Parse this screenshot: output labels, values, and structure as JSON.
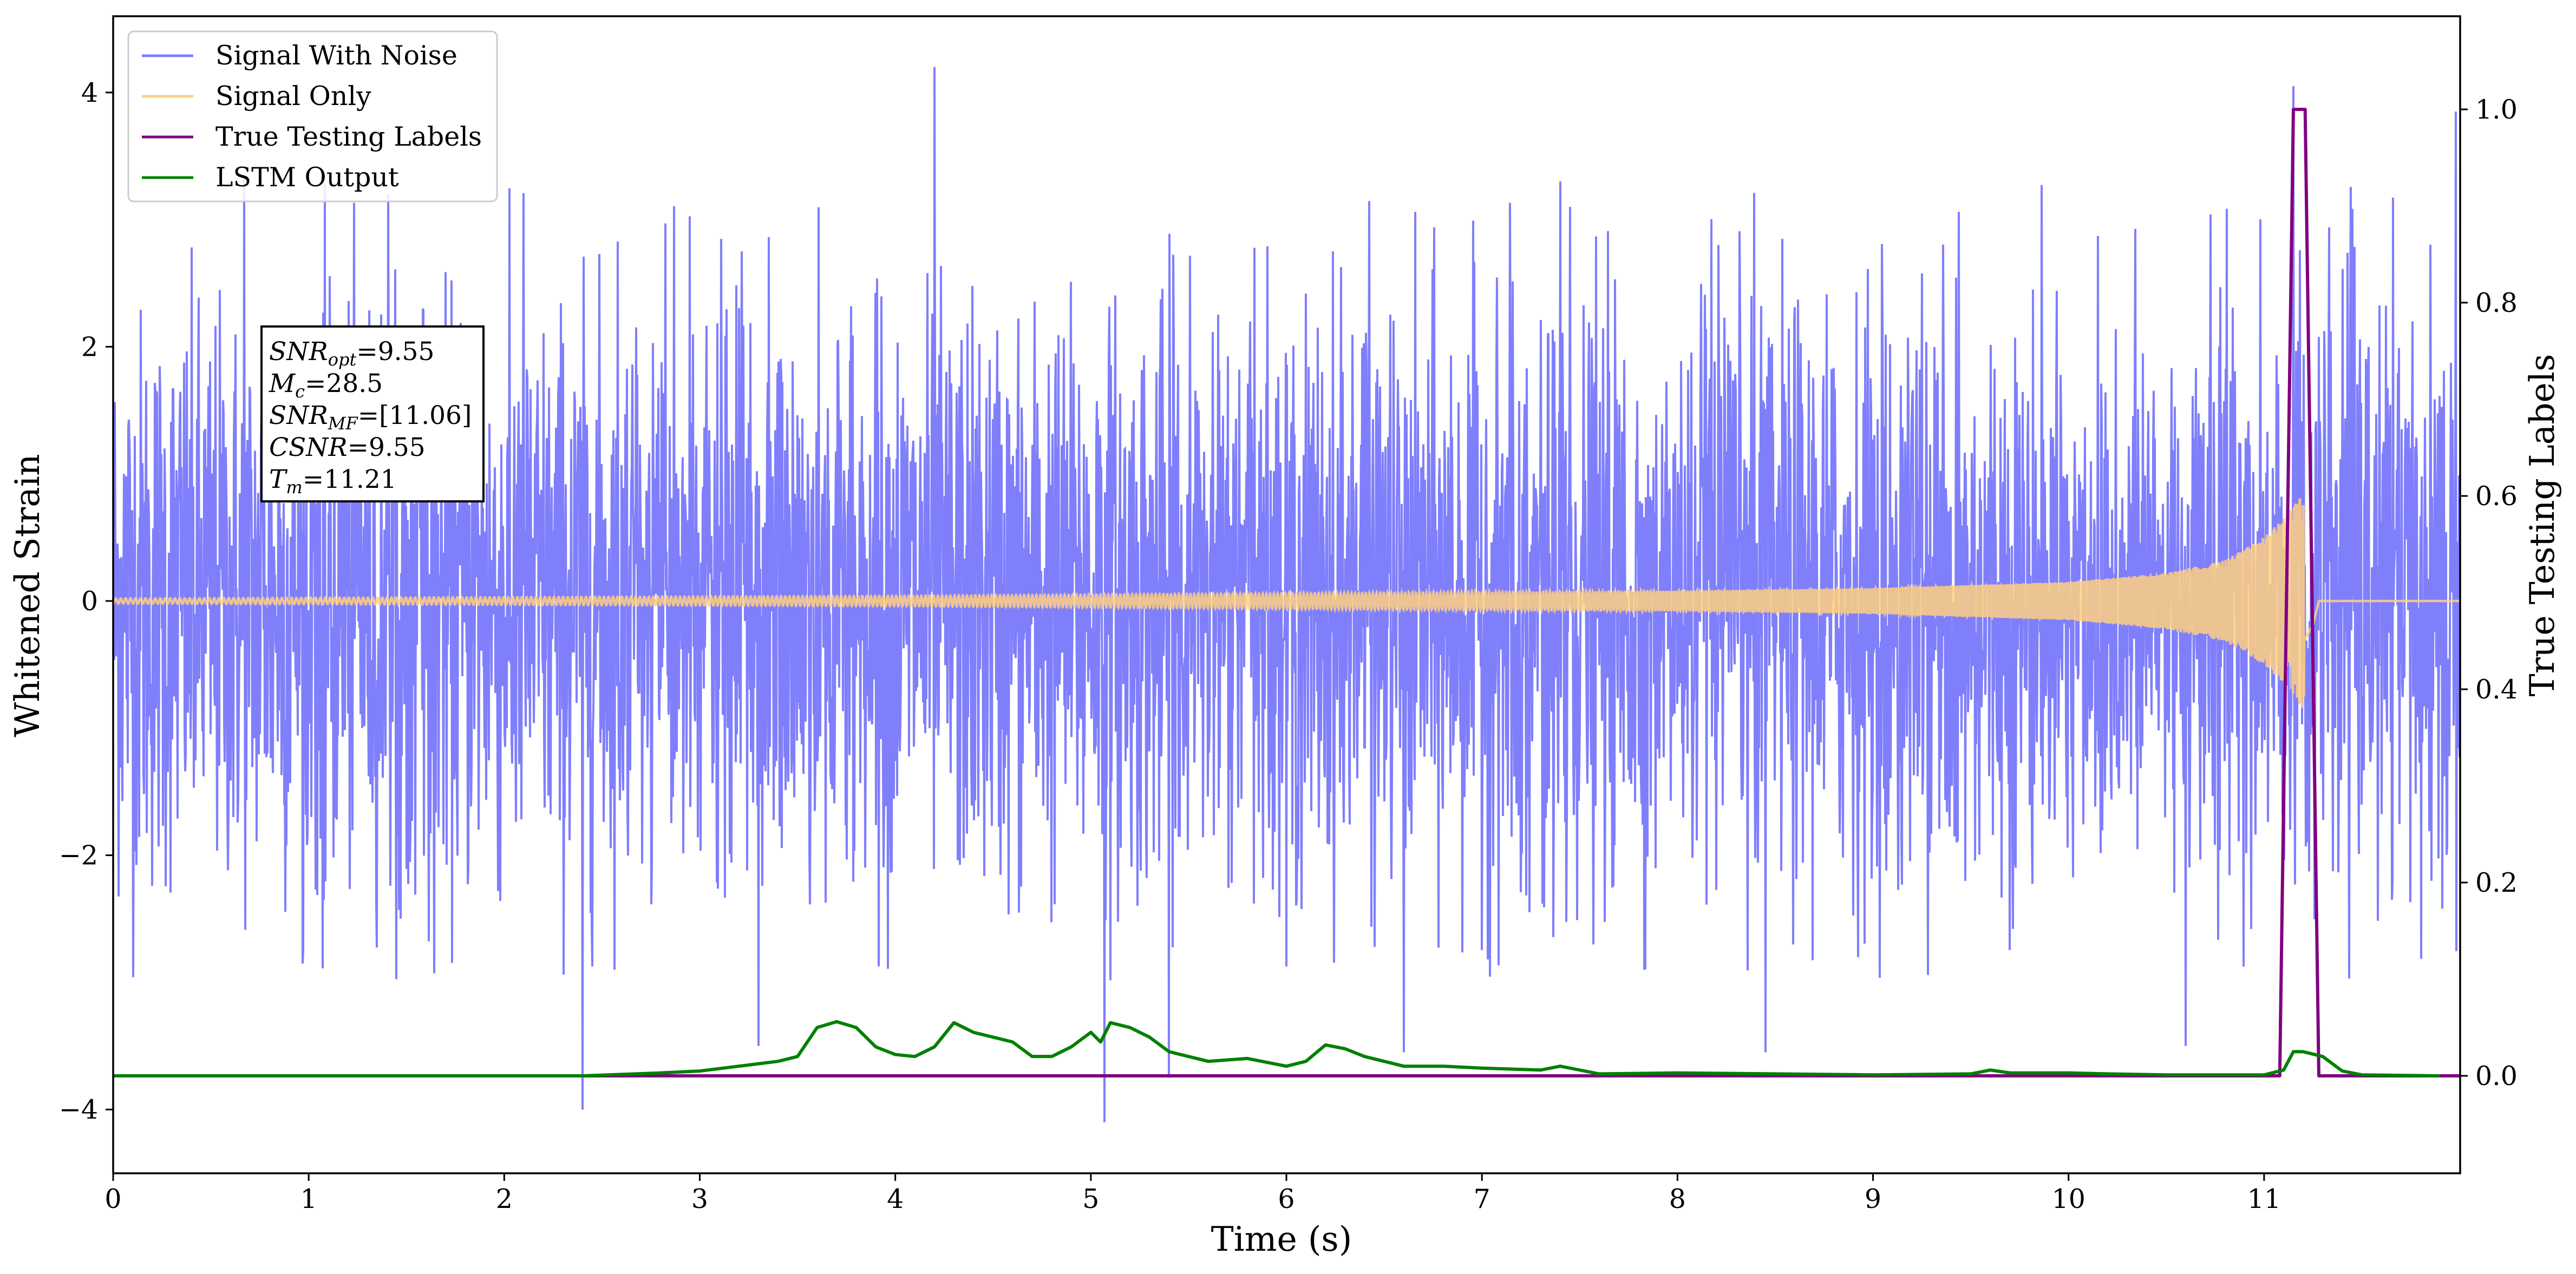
{
  "chart_data": {
    "type": "line",
    "title": "",
    "xlabel": "Time (s)",
    "ylabel": "Whitened Strain",
    "ylabel_right": "True Testing Labels",
    "xlim": [
      0,
      12
    ],
    "ylim": [
      -4.5,
      4.6
    ],
    "ylim_right": [
      -0.1,
      1.1
    ],
    "x_ticks": [
      "0",
      "1",
      "2",
      "3",
      "4",
      "5",
      "6",
      "7",
      "8",
      "9",
      "10",
      "11"
    ],
    "y_ticks": [
      "−4",
      "−2",
      "0",
      "2",
      "4"
    ],
    "y_ticks_right": [
      "0.0",
      "0.2",
      "0.4",
      "0.6",
      "0.8",
      "1.0"
    ],
    "grid": false,
    "legend_position": "top-left",
    "legend": [
      "Signal With Noise",
      "Signal Only",
      "True Testing Labels",
      "LSTM Output"
    ],
    "series": [
      {
        "name": "Signal With Noise",
        "axis": "left",
        "color": "#7f7ffc",
        "description_values": {
          "noise_envelope": [
            -3.0,
            3.3
          ],
          "spikes": [
            {
              "x": 0.67,
              "y": -3.75
            },
            {
              "x": 0.67,
              "y": 3.35
            },
            {
              "x": 2.4,
              "y": -4.0
            },
            {
              "x": 3.3,
              "y": -3.5
            },
            {
              "x": 4.2,
              "y": 4.2
            },
            {
              "x": 5.07,
              "y": -4.1
            },
            {
              "x": 5.4,
              "y": -3.75
            },
            {
              "x": 6.6,
              "y": -3.55
            },
            {
              "x": 7.4,
              "y": 3.3
            },
            {
              "x": 8.45,
              "y": -3.55
            },
            {
              "x": 10.6,
              "y": -3.5
            },
            {
              "x": 11.15,
              "y": 4.05
            },
            {
              "x": 11.98,
              "y": 3.85
            }
          ]
        }
      },
      {
        "name": "Signal Only",
        "axis": "left",
        "color": "#ffcf80",
        "amplitude_envelope": {
          "x": [
            0,
            4,
            8,
            9,
            10,
            10.5,
            10.8,
            11.0,
            11.1,
            11.2,
            11.25,
            11.28,
            12
          ],
          "y": [
            0.02,
            0.04,
            0.08,
            0.1,
            0.15,
            0.22,
            0.32,
            0.5,
            0.65,
            0.85,
            0.5,
            0,
            0
          ]
        }
      },
      {
        "name": "True Testing Labels",
        "axis": "right",
        "color": "#800080",
        "x": [
          0,
          11.08,
          11.15,
          11.21,
          11.28,
          11.29,
          12
        ],
        "y": [
          0,
          0,
          1,
          1,
          0,
          0,
          0
        ]
      },
      {
        "name": "LSTM Output",
        "axis": "right",
        "color": "#008000",
        "x": [
          0,
          2.4,
          2.8,
          3.0,
          3.2,
          3.4,
          3.5,
          3.6,
          3.7,
          3.8,
          3.9,
          4.0,
          4.1,
          4.2,
          4.3,
          4.4,
          4.5,
          4.6,
          4.7,
          4.8,
          4.9,
          5.0,
          5.05,
          5.1,
          5.2,
          5.3,
          5.4,
          5.5,
          5.6,
          5.8,
          6.0,
          6.1,
          6.2,
          6.3,
          6.4,
          6.5,
          6.6,
          6.8,
          7.0,
          7.3,
          7.4,
          7.6,
          8.0,
          8.5,
          9.0,
          9.5,
          9.6,
          9.7,
          10.0,
          10.2,
          10.5,
          11.0,
          11.1,
          11.15,
          11.2,
          11.3,
          11.4,
          11.5,
          11.9
        ],
        "y": [
          0,
          0,
          0.003,
          0.005,
          0.01,
          0.015,
          0.02,
          0.05,
          0.056,
          0.05,
          0.03,
          0.022,
          0.02,
          0.03,
          0.055,
          0.045,
          0.04,
          0.035,
          0.02,
          0.02,
          0.03,
          0.045,
          0.035,
          0.055,
          0.05,
          0.04,
          0.025,
          0.02,
          0.015,
          0.018,
          0.01,
          0.015,
          0.032,
          0.028,
          0.02,
          0.015,
          0.01,
          0.01,
          0.008,
          0.006,
          0.01,
          0.002,
          0.003,
          0.002,
          0.001,
          0.002,
          0.006,
          0.003,
          0.003,
          0.002,
          0.001,
          0.001,
          0.006,
          0.025,
          0.025,
          0.02,
          0.005,
          0.001,
          0.0
        ]
      }
    ],
    "annotations": [
      {
        "base": "SNR",
        "sub": "opt",
        "value": "=9.55"
      },
      {
        "base": "M",
        "sub": "c",
        "value": "=28.5"
      },
      {
        "base": "SNR",
        "sub": "MF",
        "value": "=[11.06]"
      },
      {
        "base": "CSNR",
        "sub": "",
        "value": "=9.55"
      },
      {
        "base": "T",
        "sub": "m",
        "value": "=11.21"
      }
    ]
  }
}
